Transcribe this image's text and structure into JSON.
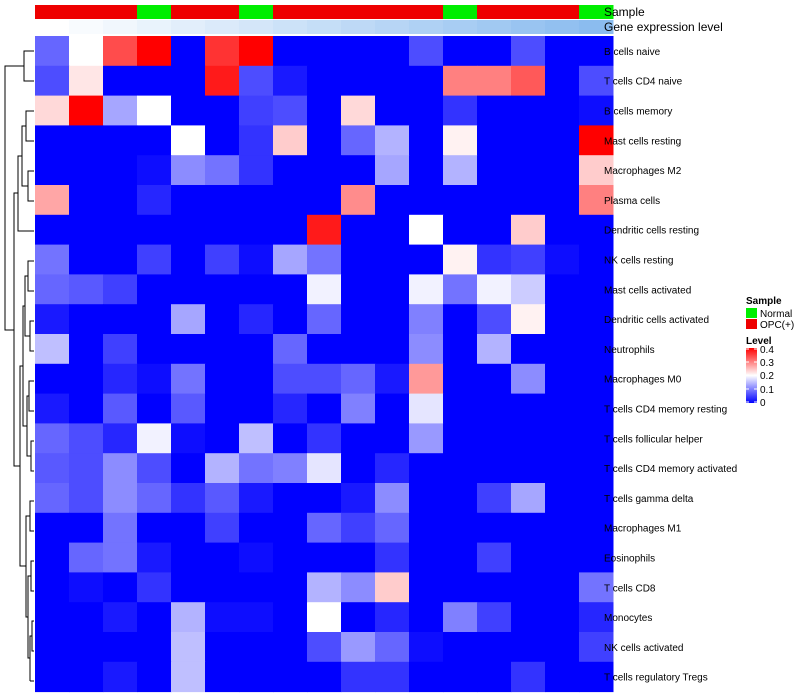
{
  "chart_data": {
    "type": "heatmap",
    "annotation_labels": [
      "Sample",
      "Gene expression level"
    ],
    "sample_groups": [
      "OPC(+)",
      "OPC(+)",
      "OPC(+)",
      "Normal",
      "OPC(+)",
      "OPC(+)",
      "Normal",
      "OPC(+)",
      "OPC(+)",
      "OPC(+)",
      "OPC(+)",
      "OPC(+)",
      "Normal",
      "OPC(+)",
      "OPC(+)",
      "OPC(+)",
      "Normal"
    ],
    "group_colors": {
      "Normal": "#00ee00",
      "OPC(+)": "#ee0000"
    },
    "expression_colors": [
      "#ffffff",
      "#f8fbfe",
      "#f1f7fd",
      "#e9f3fc",
      "#e2eefb",
      "#dbeafa",
      "#d4e6f9",
      "#cce2f8",
      "#c5def7",
      "#bed9f6",
      "#b7d5f5",
      "#afd1f4",
      "#a8cdf3",
      "#a1c9f2",
      "#99c4f1",
      "#92c0f0",
      "#8bbcef"
    ],
    "rows": [
      "B cells naive",
      "T cells CD4 naive",
      "B cells memory",
      "Mast cells resting",
      "Macrophages M2",
      "Plasma cells",
      "Dendritic cells resting",
      "NK cells resting",
      "Mast cells activated",
      "Dendritic cells activated",
      "Neutrophils",
      "Macrophages M0",
      "T cells CD4 memory resting",
      "T cells follicular helper",
      "T cells CD4 memory activated",
      "T cells gamma delta",
      "Macrophages M1",
      "Eosinophils",
      "T cells CD8",
      "Monocytes",
      "NK cells activated",
      "T cells regulatory  Tregs"
    ],
    "values": [
      [
        0.08,
        0.2,
        0.34,
        0.4,
        0,
        0.36,
        0.4,
        0,
        0,
        0,
        0,
        0.06,
        0,
        0,
        0.06,
        0,
        0
      ],
      [
        0.06,
        0.22,
        0,
        0,
        0,
        0.38,
        0.06,
        0.02,
        0,
        0,
        0,
        0,
        0.3,
        0.3,
        0.33,
        0,
        0.06
      ],
      [
        0.23,
        0.4,
        0.13,
        0.2,
        0,
        0,
        0.05,
        0.06,
        0,
        0.23,
        0,
        0,
        0.04,
        0,
        0,
        0,
        0.01
      ],
      [
        0,
        0,
        0,
        0,
        0.2,
        0,
        0.04,
        0.24,
        0,
        0.08,
        0.14,
        0,
        0.21,
        0,
        0,
        0,
        0.4
      ],
      [
        0,
        0,
        0,
        0.01,
        0.11,
        0.09,
        0.04,
        0,
        0,
        0,
        0.13,
        0,
        0.14,
        0,
        0,
        0,
        0.24
      ],
      [
        0.27,
        0,
        0,
        0.03,
        0,
        0,
        0,
        0,
        0,
        0.29,
        0,
        0,
        0,
        0,
        0,
        0,
        0.3
      ],
      [
        0,
        0,
        0,
        0,
        0,
        0,
        0,
        0,
        0.38,
        0,
        0,
        0.2,
        0,
        0,
        0.24,
        0,
        0
      ],
      [
        0.09,
        0,
        0,
        0.05,
        0,
        0.05,
        0.01,
        0.13,
        0.09,
        0,
        0,
        0,
        0.21,
        0.04,
        0.05,
        0.01,
        0
      ],
      [
        0.08,
        0.07,
        0.05,
        0,
        0,
        0,
        0,
        0,
        0.19,
        0,
        0,
        0.19,
        0.09,
        0.19,
        0.16,
        0,
        0
      ],
      [
        0.02,
        0,
        0,
        0,
        0.13,
        0,
        0.03,
        0,
        0.08,
        0,
        0,
        0.1,
        0,
        0.06,
        0.21,
        0,
        0
      ],
      [
        0.15,
        0,
        0.05,
        0,
        0,
        0,
        0,
        0.08,
        0,
        0,
        0,
        0.11,
        0,
        0.14,
        0,
        0,
        0
      ],
      [
        0,
        0,
        0.03,
        0.01,
        0.09,
        0,
        0,
        0.06,
        0.06,
        0.08,
        0.02,
        0.28,
        0,
        0,
        0.11,
        0,
        0
      ],
      [
        0.02,
        0,
        0.07,
        0,
        0.07,
        0,
        0,
        0.03,
        0,
        0.1,
        0,
        0.18,
        0,
        0,
        0,
        0,
        0
      ],
      [
        0.08,
        0.06,
        0.03,
        0.19,
        0.01,
        0,
        0.15,
        0,
        0.04,
        0,
        0,
        0.12,
        0,
        0,
        0,
        0,
        0
      ],
      [
        0.07,
        0.06,
        0.11,
        0.06,
        0,
        0.14,
        0.09,
        0.1,
        0.18,
        0,
        0.03,
        0,
        0,
        0,
        0,
        0,
        0
      ],
      [
        0.08,
        0.06,
        0.11,
        0.08,
        0.04,
        0.07,
        0.02,
        0,
        0,
        0.02,
        0.11,
        0,
        0,
        0.05,
        0.13,
        0,
        0
      ],
      [
        0,
        0,
        0.09,
        0,
        0,
        0.05,
        0,
        0,
        0.08,
        0.05,
        0.08,
        0,
        0,
        0,
        0,
        0,
        0
      ],
      [
        0,
        0.08,
        0.09,
        0.02,
        0,
        0,
        0.01,
        0,
        0,
        0,
        0.04,
        0,
        0,
        0.05,
        0,
        0,
        0
      ],
      [
        0,
        0.01,
        0,
        0.04,
        0,
        0,
        0,
        0,
        0.14,
        0.11,
        0.24,
        0,
        0,
        0,
        0,
        0,
        0.09
      ],
      [
        0,
        0,
        0.02,
        0,
        0.14,
        0.01,
        0.01,
        0,
        0.2,
        0,
        0.03,
        0,
        0.1,
        0.05,
        0,
        0,
        0.03
      ],
      [
        0,
        0,
        0,
        0,
        0.15,
        0,
        0,
        0,
        0.06,
        0.12,
        0.08,
        0.01,
        0,
        0,
        0,
        0,
        0.05
      ],
      [
        0,
        0,
        0.02,
        0,
        0.15,
        0,
        0,
        0,
        0,
        0.04,
        0.04,
        0,
        0,
        0,
        0.04,
        0,
        0
      ]
    ],
    "value_range": [
      0,
      0.4
    ],
    "color_scale": [
      {
        "value": 0,
        "color": "#0000ff"
      },
      {
        "value": 0.2,
        "color": "#ffffff"
      },
      {
        "value": 0.4,
        "color": "#ff0000"
      }
    ],
    "legend_sample": {
      "title": "Sample",
      "entries": [
        {
          "label": "Normal",
          "color": "#00ee00"
        },
        {
          "label": "OPC(+)",
          "color": "#ee0000"
        }
      ]
    },
    "legend_level": {
      "title": "Level",
      "ticks": [
        "0.4",
        "0.3",
        "0.2",
        "0.1",
        "0"
      ]
    },
    "dendrogram": "row clustering tree on left side"
  }
}
